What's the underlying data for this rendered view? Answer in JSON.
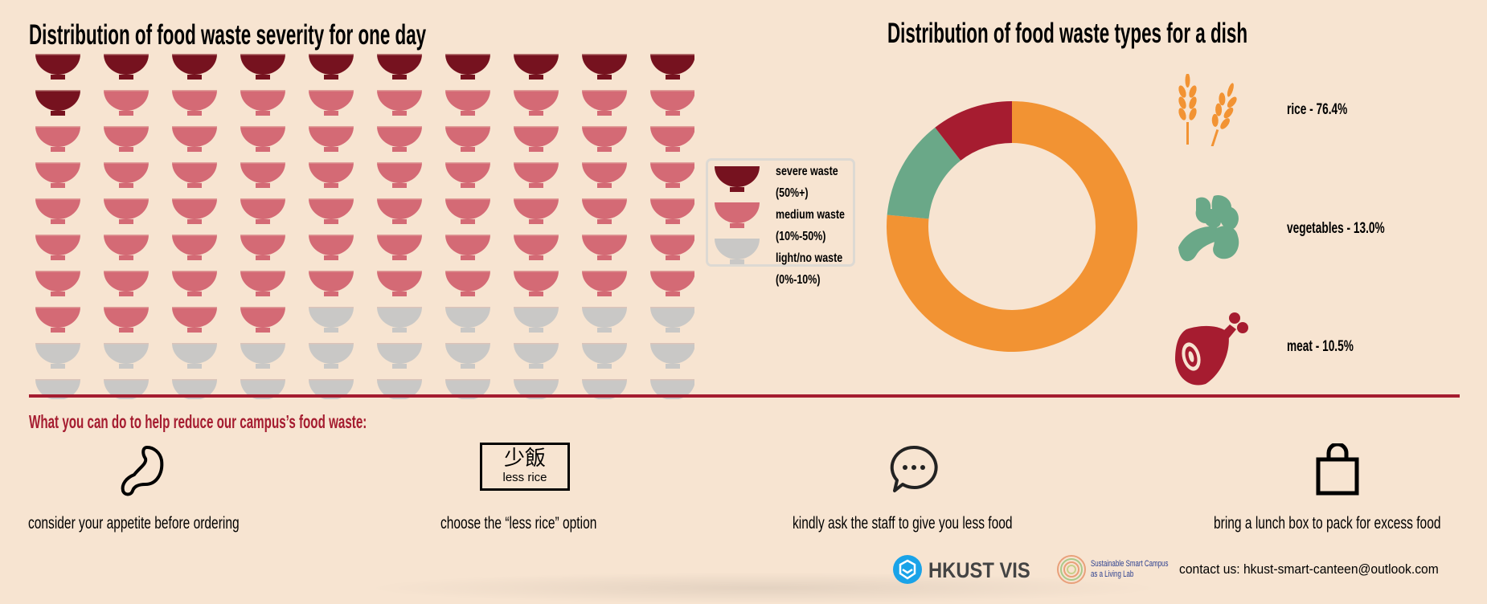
{
  "left_title": "Distribution of food waste severity for one day",
  "right_title": "Distribution of food waste types for a dish",
  "legend": [
    {
      "label": "severe waste",
      "range": "(50%+)",
      "color": "#76121f"
    },
    {
      "label": "medium waste",
      "range": "(10%-50%)",
      "color": "#d46a75"
    },
    {
      "label": "light/no waste",
      "range": "(0%-10%)",
      "color": "#c9c8c6"
    }
  ],
  "chart_data": [
    {
      "type": "waffle",
      "title": "Distribution of food waste severity for one day",
      "grid": {
        "columns": 10,
        "rows": 10
      },
      "categories": [
        "severe waste (50%+)",
        "medium waste (10%-50%)",
        "light/no waste (0%-10%)"
      ],
      "values": [
        11,
        63,
        26
      ],
      "colors": [
        "#76121f",
        "#d46a75",
        "#c9c8c6"
      ]
    },
    {
      "type": "pie",
      "donut": true,
      "title": "Distribution of food waste types for a dish",
      "categories": [
        "rice",
        "vegetables",
        "meat"
      ],
      "values": [
        76.4,
        13.0,
        10.5
      ],
      "labels": [
        "rice - 76.4%",
        "vegetables - 13.0%",
        "meat - 10.5%"
      ],
      "colors": [
        "#f29333",
        "#6aa888",
        "#a61c30"
      ]
    }
  ],
  "tips": {
    "heading": "What you can do to help reduce our campus’s food waste:",
    "less_rice_chinese": "少飯",
    "less_rice_english": "less rice",
    "items": [
      "consider your appetite before ordering",
      "choose the “less rice” option",
      "kindly ask the staff to give you less food",
      "bring a lunch box to pack for excess food"
    ]
  },
  "footer": {
    "logo1": "HKUST VIS",
    "logo2_line1": "Sustainable Smart Campus",
    "logo2_line2": "as a Living Lab",
    "contact": "contact us: hkust-smart-canteen@outlook.com"
  }
}
